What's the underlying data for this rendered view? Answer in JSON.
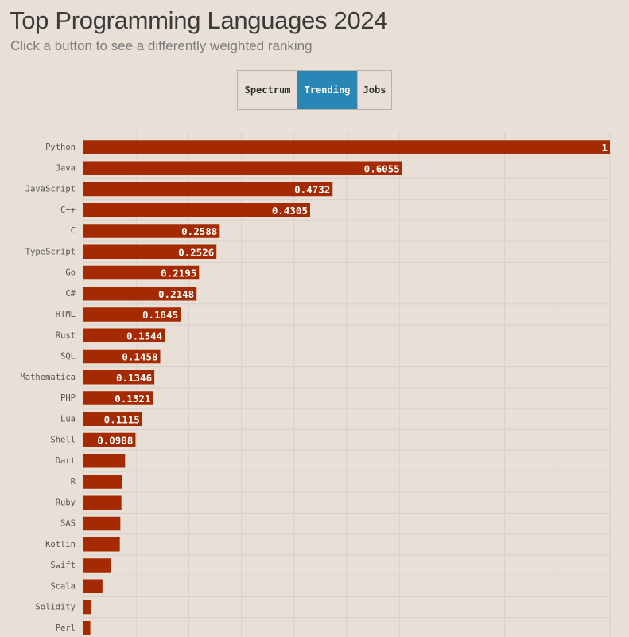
{
  "header": {
    "title": "Top Programming Languages 2024",
    "subtitle": "Click a button to see a differently weighted ranking"
  },
  "buttons": [
    {
      "label": "Spectrum",
      "active": false
    },
    {
      "label": "Trending",
      "active": true
    },
    {
      "label": "Jobs",
      "active": false
    }
  ],
  "colors": {
    "bar": "#a52a00",
    "active_button": "#2a86b5",
    "background": "#e8e0d6",
    "grid": "#d6d0ca"
  },
  "chart_data": {
    "type": "bar",
    "orientation": "horizontal",
    "xlim": [
      0,
      1
    ],
    "grid": true,
    "categories": [
      "Python",
      "Java",
      "JavaScript",
      "C++",
      "C",
      "TypeScript",
      "Go",
      "C#",
      "HTML",
      "Rust",
      "SQL",
      "Mathematica",
      "PHP",
      "Lua",
      "Shell",
      "Dart",
      "R",
      "Ruby",
      "SAS",
      "Kotlin",
      "Swift",
      "Scala",
      "Solidity",
      "Perl"
    ],
    "values": [
      1,
      0.6055,
      0.4732,
      0.4305,
      0.2588,
      0.2526,
      0.2195,
      0.2148,
      0.1845,
      0.1544,
      0.1458,
      0.1346,
      0.1321,
      0.1115,
      0.0988,
      0.079,
      0.073,
      0.072,
      0.07,
      0.069,
      0.052,
      0.036,
      0.015,
      0.013
    ],
    "value_labels": [
      "1",
      "0.6055",
      "0.4732",
      "0.4305",
      "0.2588",
      "0.2526",
      "0.2195",
      "0.2148",
      "0.1845",
      "0.1544",
      "0.1458",
      "0.1346",
      "0.1321",
      "0.1115",
      "0.0988",
      "",
      "",
      "",
      "",
      "",
      "",
      "",
      "",
      ""
    ]
  }
}
